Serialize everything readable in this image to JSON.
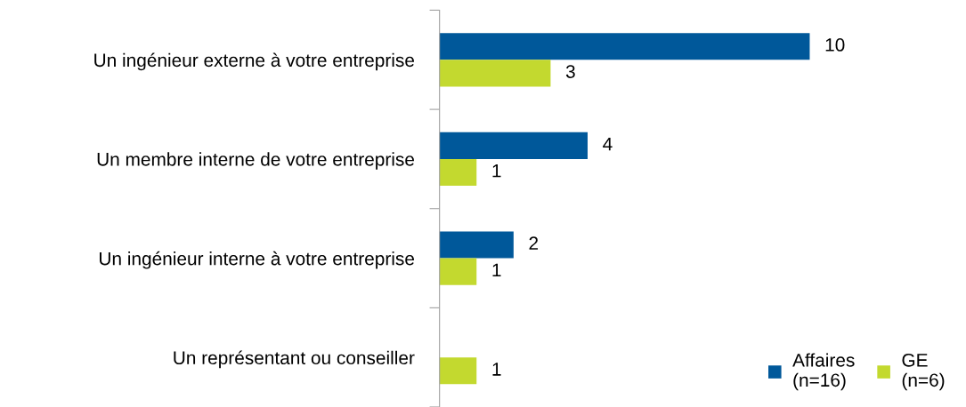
{
  "chart_data": {
    "type": "bar",
    "orientation": "horizontal",
    "categories": [
      "Un ingénieur externe à votre entreprise",
      "Un membre interne de votre entreprise",
      "Un ingénieur interne à votre entreprise",
      "Un représentant ou conseiller"
    ],
    "series": [
      {
        "name": "Affaires\n(n=16)",
        "color": "#00589a",
        "values": [
          10,
          4,
          2,
          null
        ]
      },
      {
        "name": "GE\n(n=6)",
        "color": "#c3d92f",
        "values": [
          3,
          1,
          1,
          1
        ]
      }
    ],
    "data_labels": true,
    "legend": "bottom right"
  }
}
